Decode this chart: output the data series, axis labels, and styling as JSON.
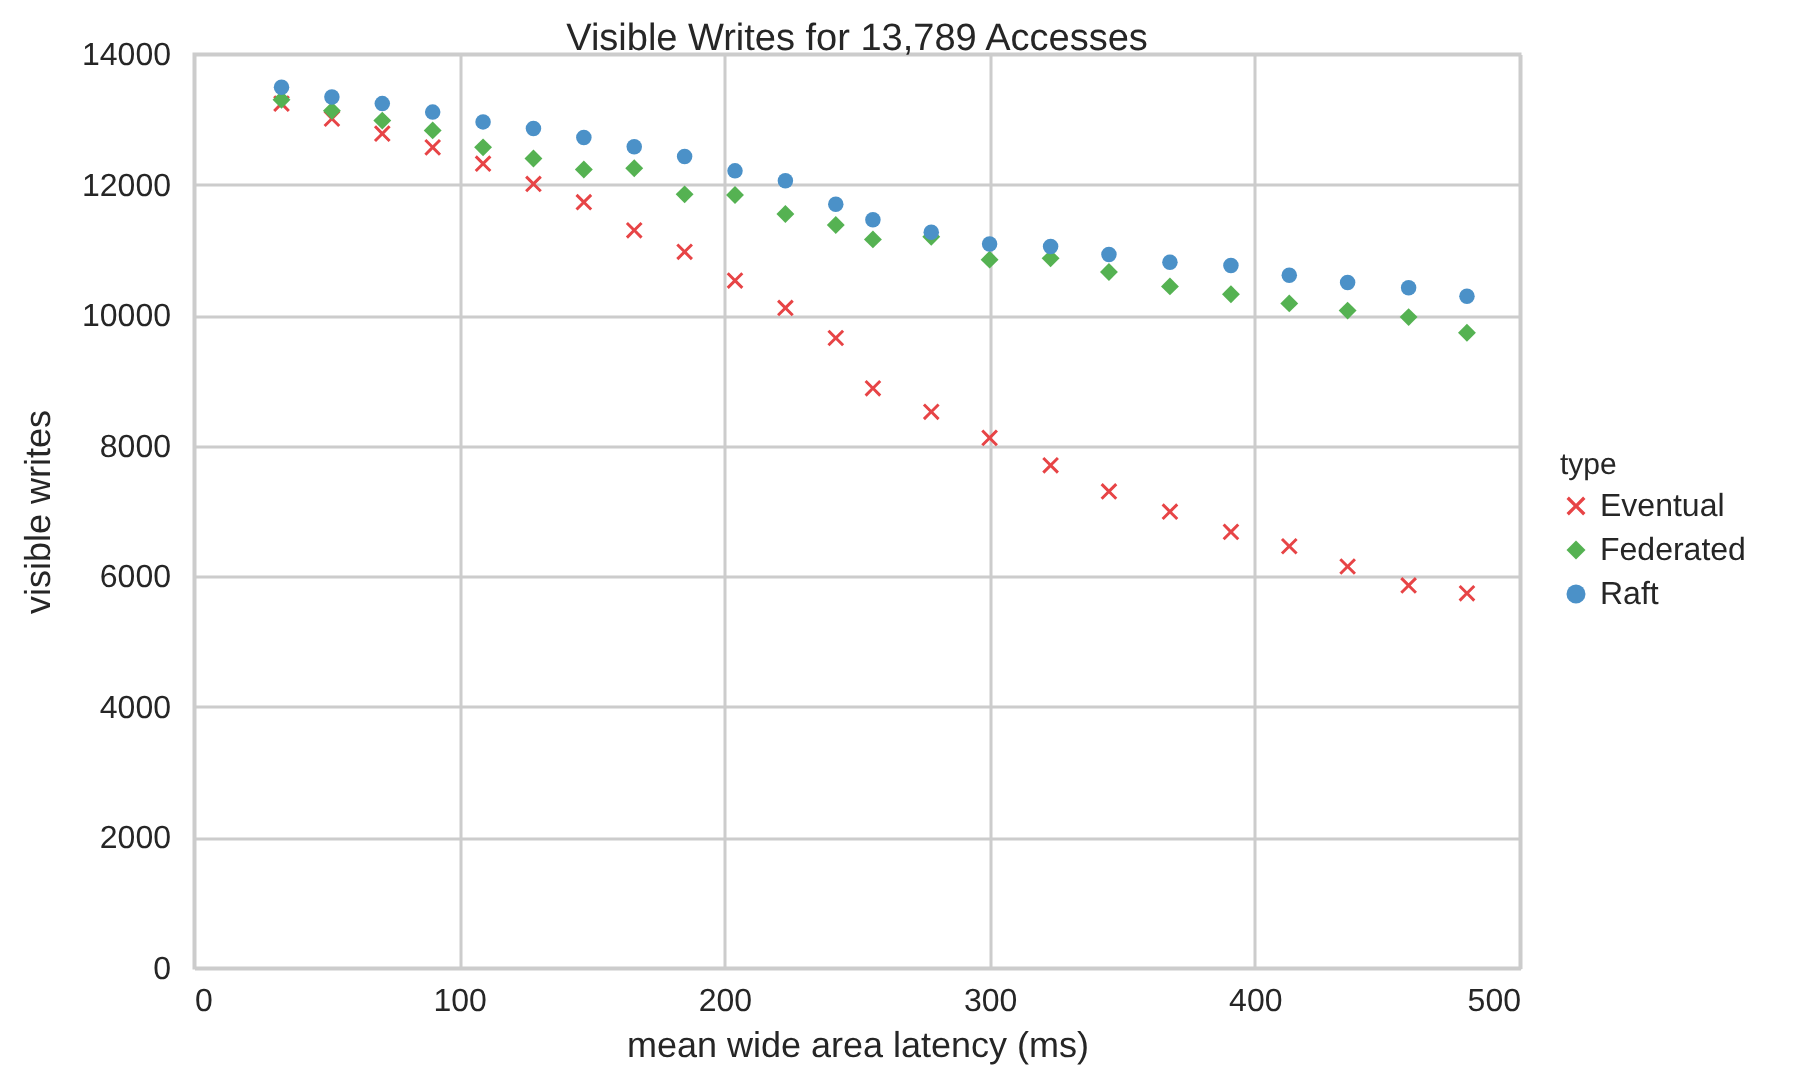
{
  "chart_data": {
    "type": "scatter",
    "title": "Visible Writes for 13,789 Accesses",
    "xlabel": "mean wide area latency (ms)",
    "ylabel": "visible writes",
    "legend_title": "type",
    "x": [
      33,
      52,
      71,
      90,
      109,
      128,
      147,
      166,
      185,
      204,
      223,
      242,
      256,
      278,
      300,
      323,
      345,
      368,
      391,
      413,
      435,
      458,
      480
    ],
    "series": [
      {
        "name": "Eventual",
        "color": "#e74446",
        "marker": "cross",
        "values": [
          13240,
          13010,
          12780,
          12570,
          12320,
          12010,
          11730,
          11300,
          10970,
          10530,
          10110,
          9650,
          8880,
          8520,
          8120,
          7700,
          7300,
          6990,
          6680,
          6460,
          6150,
          5860,
          5740
        ]
      },
      {
        "name": "Federated",
        "color": "#55b252",
        "marker": "diamond",
        "values": [
          13300,
          13130,
          12980,
          12830,
          12570,
          12400,
          12230,
          12250,
          11850,
          11840,
          11550,
          11380,
          11160,
          11200,
          10850,
          10870,
          10660,
          10440,
          10320,
          10180,
          10070,
          9970,
          9730
        ]
      },
      {
        "name": "Raft",
        "color": "#4b91c8",
        "marker": "circle",
        "values": [
          13490,
          13340,
          13240,
          13110,
          12960,
          12860,
          12720,
          12580,
          12430,
          12210,
          12060,
          11700,
          11460,
          11270,
          11090,
          11050,
          10930,
          10810,
          10760,
          10610,
          10500,
          10420,
          10290
        ]
      }
    ],
    "xlim": [
      0,
      500
    ],
    "xticks": [
      0,
      100,
      200,
      300,
      400,
      500
    ],
    "ylim": [
      0,
      14000
    ],
    "yticks": [
      0,
      2000,
      4000,
      6000,
      8000,
      10000,
      12000,
      14000
    ],
    "grid": true,
    "legend": "right"
  }
}
